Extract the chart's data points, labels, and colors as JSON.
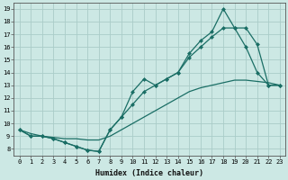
{
  "xlabel": "Humidex (Indice chaleur)",
  "xlim": [
    -0.5,
    23.5
  ],
  "ylim": [
    7.5,
    19.5
  ],
  "xticks": [
    0,
    1,
    2,
    3,
    4,
    5,
    6,
    7,
    8,
    9,
    10,
    11,
    12,
    13,
    14,
    15,
    16,
    17,
    18,
    19,
    20,
    21,
    22,
    23
  ],
  "yticks": [
    8,
    9,
    10,
    11,
    12,
    13,
    14,
    15,
    16,
    17,
    18,
    19
  ],
  "bg_color": "#cce8e4",
  "grid_color": "#aaccc8",
  "line_color": "#1a6e65",
  "line1_x": [
    0,
    1,
    2,
    3,
    4,
    5,
    6,
    7,
    8,
    9,
    10,
    11,
    12,
    13,
    14,
    15,
    16,
    17,
    18,
    19,
    20,
    21,
    22,
    23
  ],
  "line1_y": [
    9.5,
    9.0,
    9.0,
    8.8,
    8.5,
    8.2,
    7.9,
    7.8,
    9.5,
    10.5,
    12.5,
    13.5,
    13.0,
    13.5,
    14.0,
    15.5,
    16.5,
    17.2,
    19.0,
    17.5,
    16.0,
    14.0,
    13.0,
    13.0
  ],
  "line2_x": [
    0,
    1,
    2,
    3,
    4,
    5,
    6,
    7,
    8,
    9,
    10,
    11,
    12,
    13,
    14,
    15,
    16,
    17,
    18,
    19,
    20,
    21,
    22,
    23
  ],
  "line2_y": [
    9.5,
    9.0,
    9.0,
    8.8,
    8.5,
    8.2,
    7.9,
    7.8,
    9.5,
    10.5,
    11.5,
    12.5,
    13.0,
    13.5,
    14.0,
    15.2,
    16.0,
    16.8,
    17.5,
    17.5,
    17.5,
    16.2,
    13.0,
    13.0
  ],
  "line3_x": [
    0,
    1,
    2,
    3,
    4,
    5,
    6,
    7,
    8,
    9,
    10,
    11,
    12,
    13,
    14,
    15,
    16,
    17,
    18,
    19,
    20,
    21,
    22,
    23
  ],
  "line3_y": [
    9.5,
    9.2,
    9.0,
    8.9,
    8.8,
    8.8,
    8.7,
    8.7,
    9.0,
    9.5,
    10.0,
    10.5,
    11.0,
    11.5,
    12.0,
    12.5,
    12.8,
    13.0,
    13.2,
    13.4,
    13.4,
    13.3,
    13.2,
    13.0
  ],
  "xlabel_fontsize": 6,
  "tick_fontsize": 5
}
